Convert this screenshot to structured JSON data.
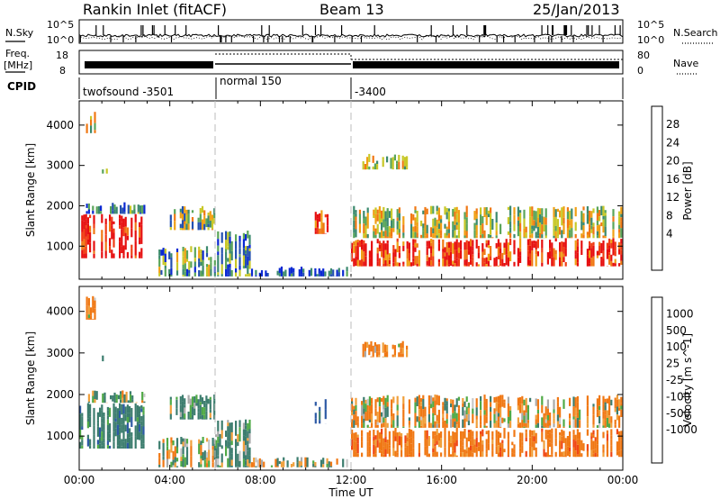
{
  "header": {
    "station": "Rankin Inlet (fitACF)",
    "beam": "Beam 13",
    "date": "25/Jan/2013"
  },
  "noise_panel": {
    "left_label": "N.Sky",
    "left_ticks": [
      "10^5",
      "10^0"
    ],
    "right_label": "N.Search",
    "right_ticks": [
      "10^5",
      "10^0"
    ]
  },
  "freq_panel": {
    "left_label_1": "Freq.",
    "left_label_2": "[MHz]",
    "left_ticks": [
      "18",
      "8"
    ],
    "right_label": "Nave",
    "right_ticks": [
      "80",
      "0"
    ]
  },
  "cpid": {
    "label": "CPID",
    "segments": [
      "twofsound -3501",
      "normal 150",
      "-3400"
    ]
  },
  "time_axis": {
    "label": "Time UT",
    "ticks": [
      "00:00",
      "04:00",
      "08:00",
      "12:00",
      "16:00",
      "20:00",
      "00:00"
    ]
  },
  "colors": {
    "power": [
      "#0a28d2",
      "#2350b0",
      "#3c8a6e",
      "#5aa55a",
      "#c8c828",
      "#f0a014",
      "#f07814",
      "#f03c14",
      "#e60f0f"
    ],
    "velocity": [
      "#1e3cbe",
      "#2d5aa5",
      "#3c7d6e",
      "#50aa46",
      "#c8c8c8",
      "#aaaaaa",
      "#f0a03c",
      "#f07814",
      "#f04614",
      "#e61414"
    ]
  },
  "chart_data": [
    {
      "type": "heatmap",
      "title": "Power",
      "xlabel": "Time UT",
      "ylabel": "Slant Range [km]",
      "xlim": [
        0,
        24
      ],
      "ylim": [
        180,
        4600
      ],
      "x_ticks": [
        "00:00",
        "04:00",
        "08:00",
        "12:00",
        "16:00",
        "20:00",
        "00:00"
      ],
      "y_ticks": [
        1000,
        2000,
        3000,
        4000
      ],
      "colorbar": {
        "label": "Power [dB]",
        "ticks": [
          4,
          8,
          12,
          16,
          20,
          24,
          28
        ]
      },
      "markers_hours": [
        6,
        12
      ],
      "echo_regions": [
        {
          "t": [
            0.0,
            3.0
          ],
          "r": [
            700,
            1800
          ],
          "level": 28
        },
        {
          "t": [
            0.3,
            3.0
          ],
          "r": [
            1800,
            2100
          ],
          "level": 8
        },
        {
          "t": [
            3.5,
            6.0
          ],
          "r": [
            250,
            1000
          ],
          "level": 12
        },
        {
          "t": [
            4.0,
            6.0
          ],
          "r": [
            1400,
            2000
          ],
          "level": 14
        },
        {
          "t": [
            6.0,
            7.5
          ],
          "r": [
            250,
            1400
          ],
          "level": 10
        },
        {
          "t": [
            7.5,
            11.8
          ],
          "r": [
            250,
            500
          ],
          "level": 6
        },
        {
          "t": [
            10.4,
            11.0
          ],
          "r": [
            1300,
            1900
          ],
          "level": 26
        },
        {
          "t": [
            12.0,
            23.9
          ],
          "r": [
            500,
            1200
          ],
          "level": 26
        },
        {
          "t": [
            12.0,
            23.9
          ],
          "r": [
            1200,
            2000
          ],
          "level": 16
        },
        {
          "t": [
            12.5,
            14.5
          ],
          "r": [
            2900,
            3300
          ],
          "level": 16
        },
        {
          "t": [
            1.0,
            1.2
          ],
          "r": [
            2800,
            3000
          ],
          "level": 12
        },
        {
          "t": [
            0.3,
            0.7
          ],
          "r": [
            3800,
            4400
          ],
          "level": 16
        }
      ]
    },
    {
      "type": "heatmap",
      "title": "Velocity",
      "xlabel": "Time UT",
      "ylabel": "Slant Range [km]",
      "xlim": [
        0,
        24
      ],
      "ylim": [
        180,
        4600
      ],
      "x_ticks": [
        "00:00",
        "04:00",
        "08:00",
        "12:00",
        "16:00",
        "20:00",
        "00:00"
      ],
      "y_ticks": [
        1000,
        2000,
        3000,
        4000
      ],
      "colorbar": {
        "label": "Velocity [m s^-1]",
        "ticks": [
          1000,
          500,
          100,
          25,
          -25,
          -100,
          -500,
          -1000
        ]
      },
      "markers_hours": [
        6,
        12
      ],
      "echo_regions": [
        {
          "t": [
            0.0,
            3.0
          ],
          "r": [
            700,
            1800
          ],
          "level": 300
        },
        {
          "t": [
            0.3,
            3.0
          ],
          "r": [
            1800,
            2100
          ],
          "level": 100
        },
        {
          "t": [
            3.5,
            6.0
          ],
          "r": [
            250,
            1000
          ],
          "level": 0
        },
        {
          "t": [
            4.0,
            6.0
          ],
          "r": [
            1400,
            2000
          ],
          "level": 200
        },
        {
          "t": [
            6.0,
            7.5
          ],
          "r": [
            250,
            1400
          ],
          "level": 150
        },
        {
          "t": [
            7.5,
            11.8
          ],
          "r": [
            250,
            500
          ],
          "level": 50
        },
        {
          "t": [
            10.4,
            11.0
          ],
          "r": [
            1300,
            1900
          ],
          "level": 600
        },
        {
          "t": [
            12.0,
            23.9
          ],
          "r": [
            500,
            1200
          ],
          "level": -300
        },
        {
          "t": [
            12.0,
            23.9
          ],
          "r": [
            1200,
            2000
          ],
          "level": -100
        },
        {
          "t": [
            12.5,
            14.5
          ],
          "r": [
            2900,
            3300
          ],
          "level": -200
        },
        {
          "t": [
            1.0,
            1.2
          ],
          "r": [
            2800,
            3000
          ],
          "level": 200
        },
        {
          "t": [
            0.3,
            0.7
          ],
          "r": [
            3800,
            4400
          ],
          "level": -200
        }
      ]
    }
  ]
}
